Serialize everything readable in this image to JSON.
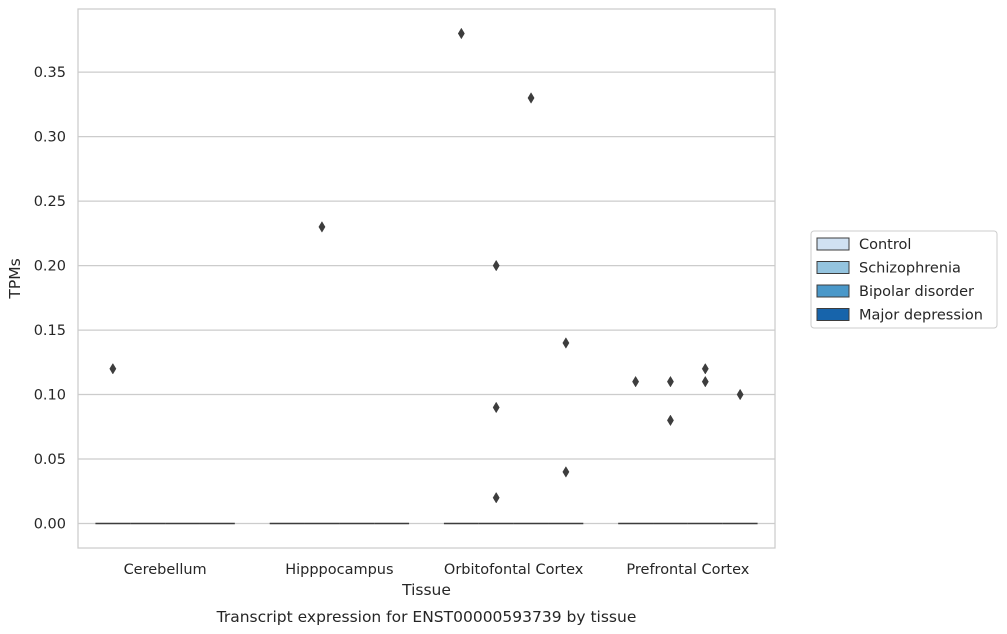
{
  "chart_data": {
    "type": "box",
    "title": "",
    "caption": "Transcript expression for ENST00000593739 by tissue",
    "xlabel": "Tissue",
    "ylabel": "TPMs",
    "categories": [
      "Cerebellum",
      "Hipppocampus",
      "Orbitofontal Cortex",
      "Prefrontal Cortex"
    ],
    "ylim": [
      -0.019,
      0.399
    ],
    "yticks": [
      0.0,
      0.05,
      0.1,
      0.15,
      0.2,
      0.25,
      0.3,
      0.35
    ],
    "ytick_labels": [
      "0.00",
      "0.05",
      "0.10",
      "0.15",
      "0.20",
      "0.25",
      "0.30",
      "0.35"
    ],
    "grid": true,
    "legend_position": "right",
    "series": [
      {
        "name": "Control",
        "color": "#d0e1f2",
        "median": [
          0,
          0,
          0,
          0
        ],
        "outliers": [
          [
            0.12
          ],
          [],
          [
            0.38
          ],
          [
            0.11
          ]
        ]
      },
      {
        "name": "Schizophrenia",
        "color": "#94c4df",
        "median": [
          0,
          0,
          0,
          0
        ],
        "outliers": [
          [],
          [
            0.23
          ],
          [
            0.02,
            0.09,
            0.2
          ],
          [
            0.08,
            0.11
          ]
        ]
      },
      {
        "name": "Bipolar disorder",
        "color": "#4a98c9",
        "median": [
          0,
          0,
          0,
          0
        ],
        "outliers": [
          [],
          [],
          [
            0.33
          ],
          [
            0.11,
            0.12
          ]
        ]
      },
      {
        "name": "Major depression",
        "color": "#1764ab",
        "median": [
          0,
          0,
          0,
          0
        ],
        "outliers": [
          [],
          [],
          [
            0.04,
            0.14
          ],
          [
            0.1
          ]
        ]
      }
    ]
  }
}
